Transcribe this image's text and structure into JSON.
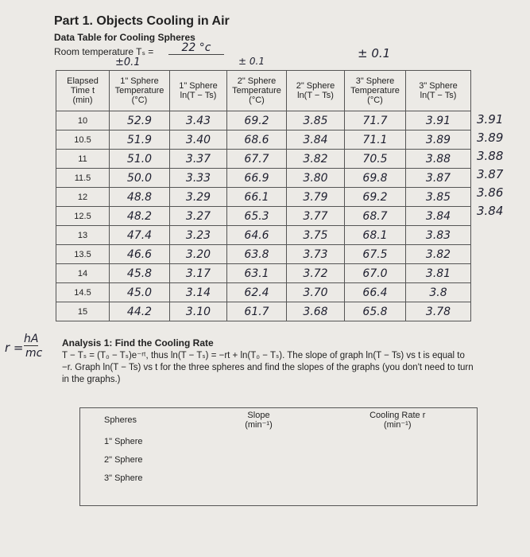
{
  "header": {
    "title": "Part 1. Objects Cooling in Air",
    "subtitle": "Data Table for Cooling Spheres",
    "room_temp_label": "Room temperature Tₛ =",
    "room_temp_value": "22 °c",
    "room_temp_uncertainty": "±0.1",
    "sphere2_uncertainty": "± 0.1",
    "sphere3_uncertainty": "± 0.1"
  },
  "table": {
    "columns": [
      "Elapsed\nTime t\n(min)",
      "1\" Sphere\nTemperature\n(°C)",
      "1\" Sphere\nln(T − Ts)",
      "2\" Sphere\nTemperature\n(°C)",
      "2\" Sphere\nln(T − Ts)",
      "3\" Sphere\nTemperature\n(°C)",
      "3\" Sphere\nln(T − Ts)"
    ],
    "rows": [
      [
        "10",
        "52.9",
        "3.43",
        "69.2",
        "3.85",
        "71.7",
        "3.91"
      ],
      [
        "10.5",
        "51.9",
        "3.40",
        "68.6",
        "3.84",
        "71.1",
        "3.89"
      ],
      [
        "11",
        "51.0",
        "3.37",
        "67.7",
        "3.82",
        "70.5",
        "3.88"
      ],
      [
        "11.5",
        "50.0",
        "3.33",
        "66.9",
        "3.80",
        "69.8",
        "3.87"
      ],
      [
        "12",
        "48.8",
        "3.29",
        "66.1",
        "3.79",
        "69.2",
        "3.85"
      ],
      [
        "12.5",
        "48.2",
        "3.27",
        "65.3",
        "3.77",
        "68.7",
        "3.84"
      ],
      [
        "13",
        "47.4",
        "3.23",
        "64.6",
        "3.75",
        "68.1",
        "3.83"
      ],
      [
        "13.5",
        "46.6",
        "3.20",
        "63.8",
        "3.73",
        "67.5",
        "3.82"
      ],
      [
        "14",
        "45.8",
        "3.17",
        "63.1",
        "3.72",
        "67.0",
        "3.81"
      ],
      [
        "14.5",
        "45.0",
        "3.14",
        "62.4",
        "3.70",
        "66.4",
        "3.8"
      ],
      [
        "15",
        "44.2",
        "3.10",
        "61.7",
        "3.68",
        "65.8",
        "3.78"
      ]
    ],
    "margin_notes": [
      "3.91",
      "3.89",
      "3.88",
      "3.87",
      "3.86",
      "3.84"
    ]
  },
  "side_note": {
    "lhs": "r =",
    "numerator": "hA",
    "denominator": "mc"
  },
  "analysis": {
    "title": "Analysis 1: Find the Cooling Rate",
    "body": "T − Tₛ = (T₀ − Tₛ)e⁻ʳᵗ, thus ln(T − Tₛ) = −rt + ln(T₀ − Tₛ). The slope of graph ln(T − Ts) vs t is equal to −r. Graph ln(T − Ts) vs t for the three spheres and find the slopes of the graphs (you don't need to turn in the graphs.)"
  },
  "results_table": {
    "columns": [
      "Spheres",
      "Slope\n(min⁻¹)",
      "Cooling Rate r\n(min⁻¹)"
    ],
    "rows": [
      "1\" Sphere",
      "2\" Sphere",
      "3\" Sphere"
    ]
  }
}
